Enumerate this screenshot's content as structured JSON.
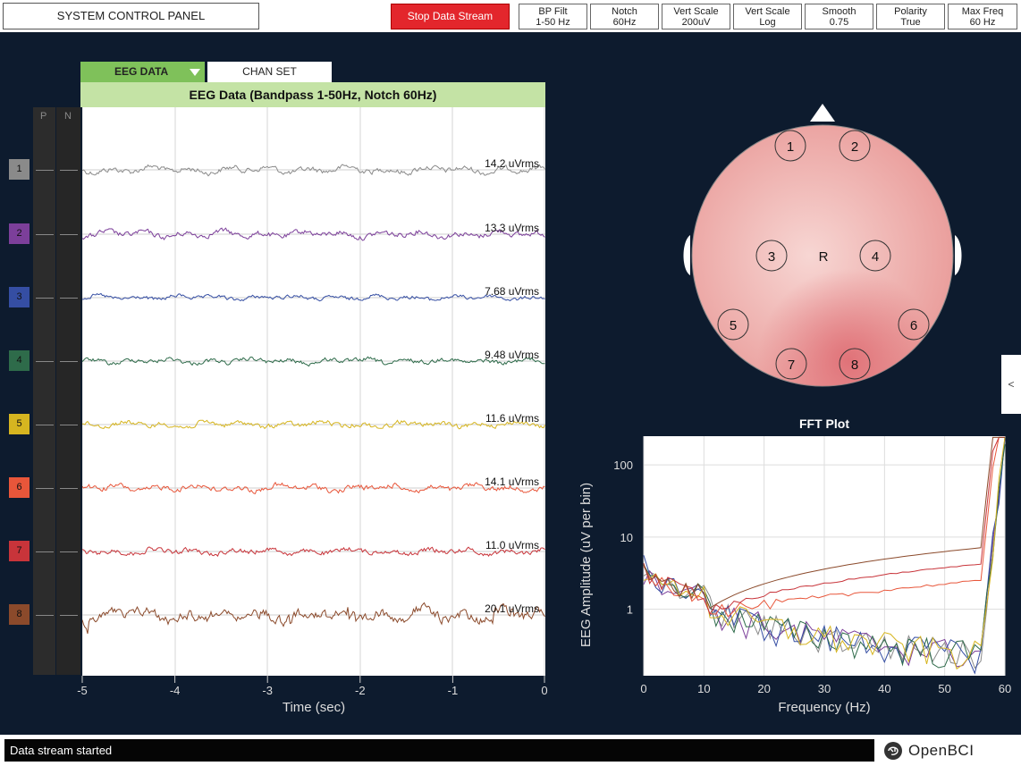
{
  "topbar": {
    "system_panel_label": "SYSTEM CONTROL PANEL",
    "stop_button_label": "Stop Data Stream",
    "controls": [
      {
        "id": "bp-filt",
        "line1": "BP Filt",
        "line2": "1-50 Hz"
      },
      {
        "id": "notch",
        "line1": "Notch",
        "line2": "60Hz"
      },
      {
        "id": "vert-scale",
        "line1": "Vert Scale",
        "line2": "200uV"
      },
      {
        "id": "vert-scale-fft",
        "line1": "Vert Scale",
        "line2": "Log"
      },
      {
        "id": "smooth",
        "line1": "Smooth",
        "line2": "0.75"
      },
      {
        "id": "polarity",
        "line1": "Polarity",
        "line2": "True"
      },
      {
        "id": "max-freq",
        "line1": "Max Freq",
        "line2": "60 Hz"
      }
    ]
  },
  "eeg_panel": {
    "tab_eeg_label": "EEG DATA",
    "tab_chan_label": "CHAN SET",
    "title": "EEG Data (Bandpass 1-50Hz, Notch 60Hz)",
    "col_p": "P",
    "col_n": "N",
    "x_ticks": [
      "-5",
      "-4",
      "-3",
      "-2",
      "-1",
      "0"
    ],
    "x_label": "Time (sec)",
    "channels": [
      {
        "num": "1",
        "color": "#8a8a8a",
        "rms": "14.2 uVrms",
        "amp": 1.0
      },
      {
        "num": "2",
        "color": "#7c3f9a",
        "rms": "13.3 uVrms",
        "amp": 1.0
      },
      {
        "num": "3",
        "color": "#354ea3",
        "rms": "7.68 uVrms",
        "amp": 0.7
      },
      {
        "num": "4",
        "color": "#2e6b4a",
        "rms": "9.48 uVrms",
        "amp": 0.8
      },
      {
        "num": "5",
        "color": "#d6b520",
        "rms": "11.6 uVrms",
        "amp": 0.9
      },
      {
        "num": "6",
        "color": "#e8563a",
        "rms": "14.1 uVrms",
        "amp": 1.0
      },
      {
        "num": "7",
        "color": "#c8343a",
        "rms": "11.0 uVrms",
        "amp": 0.9
      },
      {
        "num": "8",
        "color": "#8b4a2b",
        "rms": "20.1 uVrms",
        "amp": 1.9
      }
    ]
  },
  "head_plot": {
    "center_label": "R",
    "electrodes": [
      "1",
      "2",
      "3",
      "4",
      "5",
      "6",
      "7",
      "8"
    ]
  },
  "fft_panel": {
    "title": "FFT Plot",
    "x_label": "Frequency (Hz)",
    "y_label": "EEG Amplitude (uV per bin)",
    "x_ticks": [
      "0",
      "10",
      "20",
      "30",
      "40",
      "50",
      "60"
    ],
    "y_ticks": [
      "100",
      "10",
      "1"
    ],
    "y_scale": "log"
  },
  "side_tab_label": "<",
  "statusbar": {
    "message": "Data stream started",
    "logo_text": "OpenBCI"
  }
}
